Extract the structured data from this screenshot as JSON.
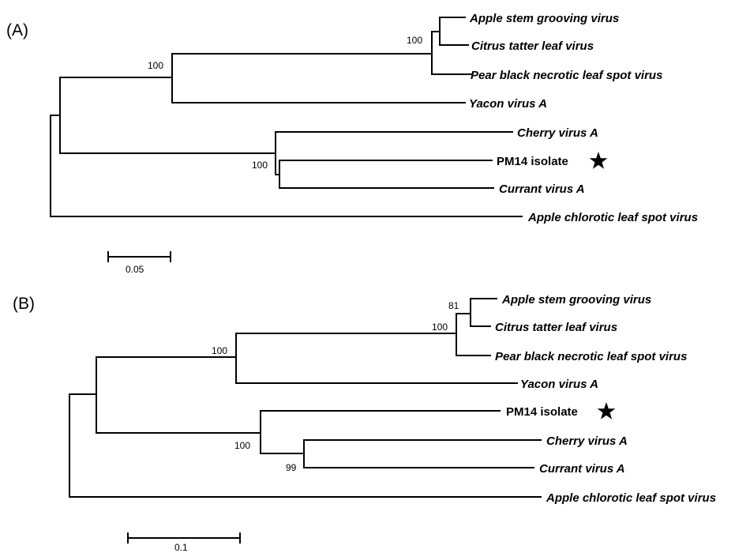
{
  "panels": [
    {
      "label": "(A)",
      "taxa": {
        "asgv": "Apple stem grooving virus",
        "ctlv": "Citrus tatter leaf virus",
        "pbnlsv": "Pear black necrotic leaf spot virus",
        "yva": "Yacon virus A",
        "cva": "Cherry virus A",
        "pm14": "PM14 isolate",
        "cuva": "Currant virus A",
        "aclsv": "Apple chlorotic leaf spot virus"
      },
      "bootstrap": {
        "n1": "100",
        "n2": "100",
        "n3": "100"
      },
      "scale_label": "0.05"
    },
    {
      "label": "(B)",
      "taxa": {
        "asgv": "Apple stem grooving virus",
        "ctlv": "Citrus tatter leaf virus",
        "pbnlsv": "Pear black necrotic leaf spot virus",
        "yva": "Yacon virus A",
        "pm14": "PM14 isolate",
        "cva": "Cherry virus A",
        "cuva": "Currant virus A",
        "aclsv": "Apple chlorotic leaf spot virus"
      },
      "bootstrap": {
        "n1": "81",
        "n2": "100",
        "n3": "100",
        "n4": "100",
        "n5": "99"
      },
      "scale_label": "0.1"
    }
  ],
  "highlight_marker": "star-icon"
}
